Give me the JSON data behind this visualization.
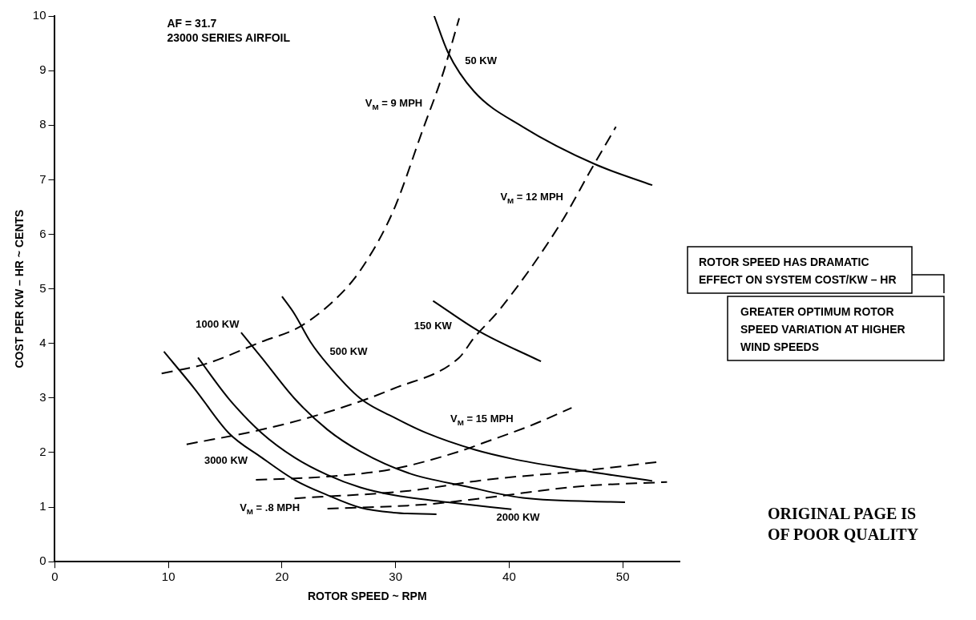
{
  "chart_data": {
    "type": "line",
    "xlabel": "ROTOR SPEED ~ RPM",
    "ylabel": "COST PER KW – HR ~ CENTS",
    "xlim": [
      0,
      55
    ],
    "xticks": [
      0,
      10,
      20,
      30,
      40,
      50
    ],
    "ylim": [
      0,
      10
    ],
    "yticks": [
      0,
      1,
      2,
      3,
      4,
      5,
      6,
      7,
      8,
      9,
      10
    ],
    "grid": false,
    "legend": false,
    "marker": "none",
    "annotations": [
      "AF = 31.7",
      "23000 SERIES AIRFOIL",
      "ROTOR SPEED HAS DRAMATIC EFFECT ON SYSTEM COST/KW – HR",
      "GREATER OPTIMUM ROTOR SPEED VARIATION AT HIGHER WIND SPEEDS",
      "ORIGINAL PAGE IS OF POOR QUALITY"
    ],
    "series": [
      {
        "name": "50 KW",
        "color": "#000000",
        "line_style": "solid",
        "x": [
          33.4,
          34.6,
          36.9,
          41.2,
          47.6,
          52.6
        ],
        "values": [
          10.0,
          9.34,
          8.62,
          7.97,
          7.28,
          6.9
        ]
      },
      {
        "name": "150 KW",
        "color": "#000000",
        "line_style": "solid",
        "x": [
          33.3,
          37.3,
          42.8
        ],
        "values": [
          4.78,
          4.23,
          3.67
        ]
      },
      {
        "name": "500 KW",
        "color": "#000000",
        "line_style": "solid",
        "x": [
          20.0,
          21.1,
          22.5,
          24.0,
          26.9,
          29.8,
          32.7,
          37.0,
          40.4,
          44.5,
          52.6
        ],
        "values": [
          4.86,
          4.54,
          4.03,
          3.62,
          2.99,
          2.65,
          2.36,
          2.05,
          1.88,
          1.73,
          1.48
        ]
      },
      {
        "name": "1000 KW",
        "color": "#000000",
        "line_style": "solid",
        "x": [
          16.4,
          18.2,
          21.1,
          24.0,
          26.9,
          31.2,
          36.2,
          41.2,
          50.2
        ],
        "values": [
          4.2,
          3.74,
          2.99,
          2.42,
          2.02,
          1.62,
          1.38,
          1.17,
          1.09
        ]
      },
      {
        "name": "2000 KW",
        "color": "#000000",
        "line_style": "solid",
        "x": [
          12.6,
          15.3,
          18.2,
          21.1,
          24.0,
          26.9,
          29.8,
          34.6,
          40.2
        ],
        "values": [
          3.74,
          2.99,
          2.36,
          1.91,
          1.59,
          1.36,
          1.22,
          1.09,
          0.96
        ]
      },
      {
        "name": "3000 KW",
        "color": "#000000",
        "line_style": "solid",
        "x": [
          9.6,
          12.3,
          15.3,
          18.2,
          21.1,
          24.0,
          26.9,
          29.8,
          33.6
        ],
        "values": [
          3.85,
          3.17,
          2.36,
          1.91,
          1.5,
          1.22,
          0.99,
          0.9,
          0.87
        ]
      },
      {
        "name": "V$_{M}$ = 9 MPH",
        "color": "#000000",
        "line_style": "dashed",
        "x": [
          9.4,
          13.2,
          18.2,
          21.6,
          24.8,
          26.9,
          29.8,
          32.4,
          34.1,
          35.6
        ],
        "values": [
          3.45,
          3.62,
          4.03,
          4.31,
          4.83,
          5.34,
          6.43,
          7.92,
          8.9,
          9.96
        ]
      },
      {
        "name": "V$_{M}$ = 12 MPH",
        "color": "#000000",
        "line_style": "dashed",
        "x": [
          11.6,
          18.2,
          24.0,
          29.8,
          35.6,
          36.9,
          39.2,
          44.5,
          47.2,
          49.4
        ],
        "values": [
          2.15,
          2.42,
          2.74,
          3.17,
          3.74,
          4.1,
          4.63,
          6.19,
          7.18,
          7.97
        ]
      },
      {
        "name": "V$_{M}$ = 15 MPH",
        "color": "#000000",
        "line_style": "dashed",
        "x": [
          17.7,
          24.0,
          29.8,
          35.6,
          37.9,
          42.2,
          45.5
        ],
        "values": [
          1.5,
          1.56,
          1.7,
          2.02,
          2.19,
          2.52,
          2.82
        ]
      },
      {
        "name": "V$_{M}$ = .8 MPH",
        "color": "#000000",
        "line_style": "dashed",
        "x": [
          21.1,
          31.2,
          37.9,
          46.2,
          53.2
        ],
        "values": [
          1.16,
          1.3,
          1.5,
          1.66,
          1.83
        ]
      },
      {
        "color": "#000000",
        "line_style": "dashed",
        "x": [
          24.0,
          32.7,
          37.9,
          46.2,
          53.9
        ],
        "values": [
          0.97,
          1.05,
          1.17,
          1.38,
          1.46
        ]
      }
    ]
  }
}
